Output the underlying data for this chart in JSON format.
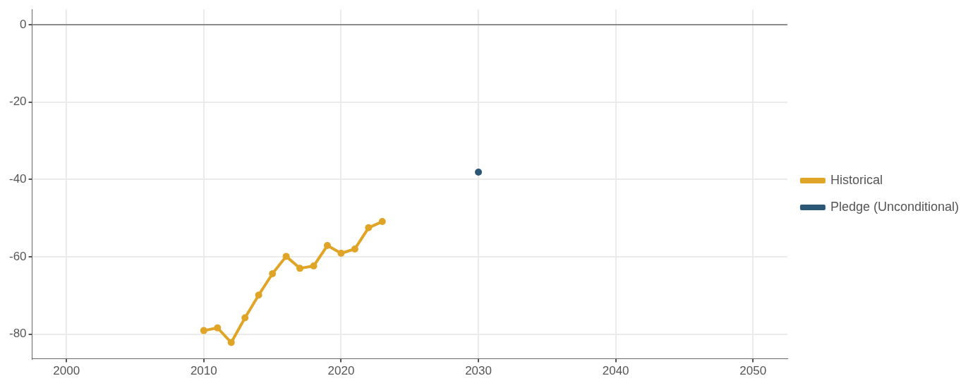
{
  "chart_data": {
    "type": "line",
    "xlim": [
      1997.5,
      2052.5
    ],
    "xticks": [
      2000,
      2010,
      2020,
      2030,
      2040,
      2050
    ],
    "ylim": [
      -86.4,
      4
    ],
    "yticks": [
      0,
      -20,
      -40,
      -60,
      -80
    ],
    "grid": true,
    "legend": "right",
    "marker": "circle",
    "line_style": "solid",
    "ref_lines": [
      {
        "axis": "y",
        "value": 0,
        "color": "#8c8c8c"
      }
    ],
    "series": [
      {
        "name": "Historical",
        "color": "#e0a526",
        "x": [
          2010,
          2011,
          2012,
          2013,
          2014,
          2015,
          2016,
          2017,
          2018,
          2019,
          2020,
          2021,
          2022,
          2023
        ],
        "values": [
          -79.1,
          -78.4,
          -82.2,
          -75.8,
          -69.9,
          -64.4,
          -59.9,
          -63.0,
          -62.4,
          -57.1,
          -59.1,
          -58.0,
          -52.5,
          -50.9
        ]
      },
      {
        "name": "Pledge (Unconditional)",
        "color": "#2b5676",
        "x": [
          2030
        ],
        "values": [
          -38.1
        ]
      }
    ]
  }
}
